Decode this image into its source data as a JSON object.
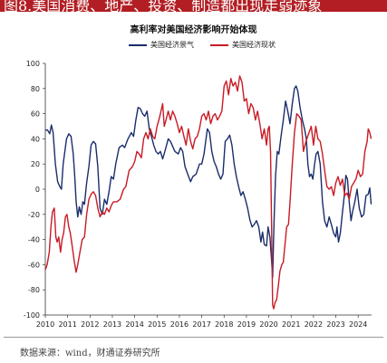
{
  "header": {
    "caption": "图8.美国消费、地产、投资、制造都出现走弱迹象"
  },
  "source_note": "数据来源：wind，财通证券研究所",
  "chart_data": {
    "type": "line",
    "title": "高利率对美国经济影响开始体现",
    "xlabel": "",
    "ylabel": "",
    "x_ticks": [
      "2010",
      "2011",
      "2012",
      "2013",
      "2014",
      "2015",
      "2016",
      "2017",
      "2018",
      "2019",
      "2020",
      "2021",
      "2022",
      "2023",
      "2024"
    ],
    "y_ticks": [
      100,
      80,
      60,
      40,
      20,
      0,
      -20,
      -40,
      -60,
      -80,
      -100
    ],
    "xlim": [
      2010.0,
      2024.6
    ],
    "ylim": [
      -100,
      100
    ],
    "legend_position": "top",
    "series": [
      {
        "name": "美国经济景气",
        "color": "#1a2d6b",
        "points": [
          [
            2010.0,
            47
          ],
          [
            2010.1,
            47
          ],
          [
            2010.2,
            44
          ],
          [
            2010.27,
            51
          ],
          [
            2010.35,
            45
          ],
          [
            2010.45,
            20
          ],
          [
            2010.55,
            6
          ],
          [
            2010.65,
            2
          ],
          [
            2010.72,
            0
          ],
          [
            2010.8,
            20
          ],
          [
            2010.95,
            40
          ],
          [
            2011.05,
            44
          ],
          [
            2011.15,
            42
          ],
          [
            2011.25,
            28
          ],
          [
            2011.32,
            10
          ],
          [
            2011.38,
            -10
          ],
          [
            2011.45,
            -22
          ],
          [
            2011.52,
            -14
          ],
          [
            2011.6,
            -20
          ],
          [
            2011.68,
            -10
          ],
          [
            2011.75,
            -12
          ],
          [
            2011.85,
            5
          ],
          [
            2011.95,
            18
          ],
          [
            2012.05,
            35
          ],
          [
            2012.15,
            38
          ],
          [
            2012.25,
            36
          ],
          [
            2012.35,
            18
          ],
          [
            2012.45,
            -15
          ],
          [
            2012.55,
            -20
          ],
          [
            2012.65,
            -8
          ],
          [
            2012.75,
            -12
          ],
          [
            2012.85,
            -2
          ],
          [
            2012.95,
            10
          ],
          [
            2013.05,
            8
          ],
          [
            2013.15,
            20
          ],
          [
            2013.3,
            33
          ],
          [
            2013.45,
            35
          ],
          [
            2013.55,
            33
          ],
          [
            2013.7,
            40
          ],
          [
            2013.85,
            45
          ],
          [
            2013.95,
            42
          ],
          [
            2014.05,
            55
          ],
          [
            2014.15,
            65
          ],
          [
            2014.25,
            64
          ],
          [
            2014.35,
            60
          ],
          [
            2014.45,
            58
          ],
          [
            2014.55,
            62
          ],
          [
            2014.65,
            48
          ],
          [
            2014.75,
            42
          ],
          [
            2014.85,
            35
          ],
          [
            2014.95,
            30
          ],
          [
            2015.05,
            28
          ],
          [
            2015.15,
            30
          ],
          [
            2015.25,
            24
          ],
          [
            2015.35,
            30
          ],
          [
            2015.5,
            40
          ],
          [
            2015.6,
            38
          ],
          [
            2015.7,
            34
          ],
          [
            2015.8,
            30
          ],
          [
            2015.95,
            28
          ],
          [
            2016.05,
            33
          ],
          [
            2016.15,
            30
          ],
          [
            2016.25,
            18
          ],
          [
            2016.35,
            13
          ],
          [
            2016.5,
            6
          ],
          [
            2016.6,
            10
          ],
          [
            2016.75,
            12
          ],
          [
            2016.9,
            20
          ],
          [
            2017.0,
            20
          ],
          [
            2017.1,
            28
          ],
          [
            2017.25,
            48
          ],
          [
            2017.35,
            45
          ],
          [
            2017.45,
            30
          ],
          [
            2017.55,
            22
          ],
          [
            2017.65,
            18
          ],
          [
            2017.75,
            12
          ],
          [
            2017.85,
            8
          ],
          [
            2017.95,
            12
          ],
          [
            2018.05,
            38
          ],
          [
            2018.15,
            40
          ],
          [
            2018.25,
            43
          ],
          [
            2018.35,
            35
          ],
          [
            2018.45,
            20
          ],
          [
            2018.55,
            10
          ],
          [
            2018.65,
            2
          ],
          [
            2018.75,
            -5
          ],
          [
            2018.85,
            -2
          ],
          [
            2018.95,
            -8
          ],
          [
            2019.05,
            -15
          ],
          [
            2019.15,
            -24
          ],
          [
            2019.25,
            -30
          ],
          [
            2019.35,
            -28
          ],
          [
            2019.45,
            -25
          ],
          [
            2019.55,
            -30
          ],
          [
            2019.65,
            -42
          ],
          [
            2019.72,
            -34
          ],
          [
            2019.8,
            -44
          ],
          [
            2019.9,
            -45
          ],
          [
            2019.97,
            -30
          ],
          [
            2020.05,
            -38
          ],
          [
            2020.12,
            -55
          ],
          [
            2020.17,
            -70
          ],
          [
            2020.23,
            -30
          ],
          [
            2020.3,
            10
          ],
          [
            2020.38,
            30
          ],
          [
            2020.45,
            28
          ],
          [
            2020.55,
            42
          ],
          [
            2020.65,
            55
          ],
          [
            2020.75,
            70
          ],
          [
            2020.85,
            62
          ],
          [
            2020.95,
            52
          ],
          [
            2021.05,
            68
          ],
          [
            2021.15,
            80
          ],
          [
            2021.22,
            82
          ],
          [
            2021.3,
            78
          ],
          [
            2021.4,
            65
          ],
          [
            2021.5,
            55
          ],
          [
            2021.6,
            48
          ],
          [
            2021.68,
            40
          ],
          [
            2021.75,
            20
          ],
          [
            2021.82,
            10
          ],
          [
            2021.9,
            12
          ],
          [
            2021.97,
            8
          ],
          [
            2022.05,
            20
          ],
          [
            2022.12,
            28
          ],
          [
            2022.2,
            30
          ],
          [
            2022.3,
            20
          ],
          [
            2022.4,
            -10
          ],
          [
            2022.5,
            -25
          ],
          [
            2022.6,
            -30
          ],
          [
            2022.7,
            -22
          ],
          [
            2022.8,
            -28
          ],
          [
            2022.9,
            -35
          ],
          [
            2023.0,
            -38
          ],
          [
            2023.05,
            -30
          ],
          [
            2023.12,
            -42
          ],
          [
            2023.2,
            -35
          ],
          [
            2023.3,
            -18
          ],
          [
            2023.38,
            -5
          ],
          [
            2023.45,
            11
          ],
          [
            2023.52,
            8
          ],
          [
            2023.6,
            -10
          ],
          [
            2023.68,
            -25
          ],
          [
            2023.75,
            -18
          ],
          [
            2023.85,
            -10
          ],
          [
            2023.95,
            0
          ],
          [
            2024.05,
            -15
          ],
          [
            2024.15,
            -22
          ],
          [
            2024.25,
            -20
          ],
          [
            2024.35,
            -5
          ],
          [
            2024.45,
            -4
          ],
          [
            2024.52,
            1
          ],
          [
            2024.58,
            -12
          ]
        ]
      },
      {
        "name": "美国经济现状",
        "color": "#c81b24",
        "points": [
          [
            2010.0,
            -64
          ],
          [
            2010.08,
            -60
          ],
          [
            2010.18,
            -50
          ],
          [
            2010.25,
            -30
          ],
          [
            2010.32,
            -18
          ],
          [
            2010.4,
            -15
          ],
          [
            2010.47,
            -38
          ],
          [
            2010.53,
            -42
          ],
          [
            2010.6,
            -38
          ],
          [
            2010.68,
            -50
          ],
          [
            2010.75,
            -40
          ],
          [
            2010.82,
            -35
          ],
          [
            2010.9,
            -22
          ],
          [
            2010.97,
            -20
          ],
          [
            2011.05,
            -30
          ],
          [
            2011.12,
            -35
          ],
          [
            2011.2,
            -45
          ],
          [
            2011.3,
            -58
          ],
          [
            2011.38,
            -66
          ],
          [
            2011.45,
            -60
          ],
          [
            2011.55,
            -50
          ],
          [
            2011.65,
            -40
          ],
          [
            2011.75,
            -38
          ],
          [
            2011.85,
            -20
          ],
          [
            2011.95,
            -8
          ],
          [
            2012.05,
            -4
          ],
          [
            2012.15,
            -2
          ],
          [
            2012.25,
            -5
          ],
          [
            2012.35,
            -15
          ],
          [
            2012.45,
            -22
          ],
          [
            2012.55,
            -18
          ],
          [
            2012.65,
            -20
          ],
          [
            2012.75,
            -15
          ],
          [
            2012.85,
            -18
          ],
          [
            2012.95,
            -13
          ],
          [
            2013.05,
            -10
          ],
          [
            2013.2,
            -10
          ],
          [
            2013.35,
            -8
          ],
          [
            2013.5,
            0
          ],
          [
            2013.6,
            2
          ],
          [
            2013.75,
            15
          ],
          [
            2013.9,
            18
          ],
          [
            2014.0,
            22
          ],
          [
            2014.1,
            30
          ],
          [
            2014.2,
            28
          ],
          [
            2014.3,
            25
          ],
          [
            2014.4,
            40
          ],
          [
            2014.5,
            45
          ],
          [
            2014.6,
            40
          ],
          [
            2014.7,
            48
          ],
          [
            2014.8,
            42
          ],
          [
            2014.9,
            40
          ],
          [
            2015.0,
            50
          ],
          [
            2015.08,
            55
          ],
          [
            2015.15,
            60
          ],
          [
            2015.25,
            68
          ],
          [
            2015.32,
            50
          ],
          [
            2015.4,
            55
          ],
          [
            2015.5,
            62
          ],
          [
            2015.6,
            55
          ],
          [
            2015.7,
            62
          ],
          [
            2015.8,
            58
          ],
          [
            2015.9,
            52
          ],
          [
            2016.0,
            45
          ],
          [
            2016.1,
            50
          ],
          [
            2016.2,
            42
          ],
          [
            2016.3,
            35
          ],
          [
            2016.4,
            48
          ],
          [
            2016.5,
            38
          ],
          [
            2016.6,
            32
          ],
          [
            2016.7,
            40
          ],
          [
            2016.8,
            42
          ],
          [
            2016.9,
            48
          ],
          [
            2017.0,
            58
          ],
          [
            2017.1,
            60
          ],
          [
            2017.2,
            55
          ],
          [
            2017.3,
            62
          ],
          [
            2017.4,
            52
          ],
          [
            2017.5,
            58
          ],
          [
            2017.6,
            60
          ],
          [
            2017.7,
            55
          ],
          [
            2017.8,
            58
          ],
          [
            2017.9,
            62
          ],
          [
            2018.0,
            82
          ],
          [
            2018.1,
            86
          ],
          [
            2018.2,
            75
          ],
          [
            2018.3,
            88
          ],
          [
            2018.4,
            82
          ],
          [
            2018.5,
            85
          ],
          [
            2018.6,
            78
          ],
          [
            2018.7,
            90
          ],
          [
            2018.8,
            85
          ],
          [
            2018.9,
            70
          ],
          [
            2019.0,
            72
          ],
          [
            2019.1,
            60
          ],
          [
            2019.2,
            68
          ],
          [
            2019.3,
            65
          ],
          [
            2019.4,
            55
          ],
          [
            2019.5,
            62
          ],
          [
            2019.6,
            52
          ],
          [
            2019.7,
            40
          ],
          [
            2019.8,
            48
          ],
          [
            2019.9,
            35
          ],
          [
            2019.97,
            48
          ],
          [
            2020.02,
            50
          ],
          [
            2020.08,
            30
          ],
          [
            2020.12,
            -20
          ],
          [
            2020.17,
            -92
          ],
          [
            2020.22,
            -95
          ],
          [
            2020.28,
            -90
          ],
          [
            2020.35,
            -88
          ],
          [
            2020.42,
            -78
          ],
          [
            2020.5,
            -65
          ],
          [
            2020.58,
            -60
          ],
          [
            2020.65,
            -58
          ],
          [
            2020.72,
            -45
          ],
          [
            2020.8,
            -30
          ],
          [
            2020.88,
            -28
          ],
          [
            2020.95,
            -10
          ],
          [
            2021.05,
            20
          ],
          [
            2021.15,
            45
          ],
          [
            2021.25,
            60
          ],
          [
            2021.35,
            58
          ],
          [
            2021.45,
            55
          ],
          [
            2021.55,
            30
          ],
          [
            2021.62,
            35
          ],
          [
            2021.7,
            40
          ],
          [
            2021.8,
            45
          ],
          [
            2021.9,
            50
          ],
          [
            2022.0,
            35
          ],
          [
            2022.1,
            50
          ],
          [
            2022.2,
            40
          ],
          [
            2022.3,
            38
          ],
          [
            2022.4,
            28
          ],
          [
            2022.5,
            15
          ],
          [
            2022.6,
            2
          ],
          [
            2022.7,
            0
          ],
          [
            2022.8,
            2
          ],
          [
            2022.9,
            -5
          ],
          [
            2023.0,
            5
          ],
          [
            2023.1,
            10
          ],
          [
            2023.2,
            3
          ],
          [
            2023.3,
            8
          ],
          [
            2023.4,
            -5
          ],
          [
            2023.5,
            -3
          ],
          [
            2023.6,
            -8
          ],
          [
            2023.7,
            2
          ],
          [
            2023.8,
            5
          ],
          [
            2023.9,
            8
          ],
          [
            2024.0,
            15
          ],
          [
            2024.1,
            10
          ],
          [
            2024.2,
            12
          ],
          [
            2024.3,
            30
          ],
          [
            2024.4,
            38
          ],
          [
            2024.45,
            48
          ],
          [
            2024.52,
            45
          ],
          [
            2024.58,
            40
          ]
        ]
      }
    ]
  }
}
